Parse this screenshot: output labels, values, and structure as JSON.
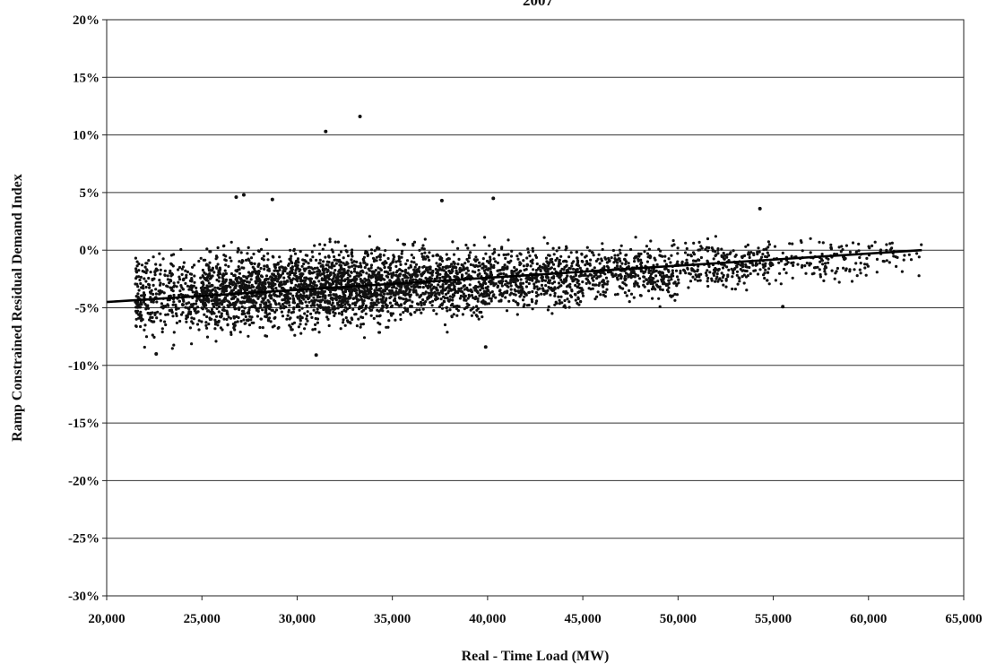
{
  "chart_data": {
    "type": "scatter",
    "title": "2007",
    "xlabel": "Real - Time Load (MW)",
    "ylabel": "Ramp Constrained Residual Demand Index",
    "xlim": [
      20000,
      65000
    ],
    "ylim": [
      -30,
      20
    ],
    "x_ticks": [
      "20,000",
      "25,000",
      "30,000",
      "35,000",
      "40,000",
      "45,000",
      "50,000",
      "55,000",
      "60,000",
      "65,000"
    ],
    "y_ticks": [
      "20%",
      "15%",
      "10%",
      "5%",
      "0%",
      "-5%",
      "-10%",
      "-15%",
      "-20%",
      "-25%",
      "-30%"
    ],
    "grid": "horizontal",
    "legend": "none",
    "marker_color": "#111111",
    "trend_line": {
      "x": [
        20000,
        62800
      ],
      "y": [
        -4.5,
        0.0
      ]
    },
    "scatter_density": [
      {
        "x_range": [
          21500,
          25000
        ],
        "y_center": -4.0,
        "y_spread": 2.8,
        "count": 360
      },
      {
        "x_range": [
          25000,
          30000
        ],
        "y_center": -3.5,
        "y_spread": 2.9,
        "count": 900
      },
      {
        "x_range": [
          30000,
          35000
        ],
        "y_center": -3.2,
        "y_spread": 2.9,
        "count": 950
      },
      {
        "x_range": [
          35000,
          40000
        ],
        "y_center": -2.8,
        "y_spread": 2.6,
        "count": 700
      },
      {
        "x_range": [
          40000,
          45000
        ],
        "y_center": -2.5,
        "y_spread": 2.3,
        "count": 520
      },
      {
        "x_range": [
          45000,
          50000
        ],
        "y_center": -1.9,
        "y_spread": 2.0,
        "count": 380
      },
      {
        "x_range": [
          50000,
          55000
        ],
        "y_center": -1.3,
        "y_spread": 1.8,
        "count": 260
      },
      {
        "x_range": [
          55000,
          60000
        ],
        "y_center": -0.9,
        "y_spread": 1.6,
        "count": 120
      },
      {
        "x_range": [
          60000,
          62800
        ],
        "y_center": -0.5,
        "y_spread": 1.2,
        "count": 35
      }
    ],
    "outliers": [
      {
        "x": 33300,
        "y": 11.6
      },
      {
        "x": 31500,
        "y": 10.3
      },
      {
        "x": 27200,
        "y": 4.8
      },
      {
        "x": 26800,
        "y": 4.6
      },
      {
        "x": 28700,
        "y": 4.4
      },
      {
        "x": 37600,
        "y": 4.3
      },
      {
        "x": 40300,
        "y": 4.5
      },
      {
        "x": 54300,
        "y": 3.6
      },
      {
        "x": 39900,
        "y": -8.4
      },
      {
        "x": 55500,
        "y": -4.9
      },
      {
        "x": 22600,
        "y": -9.0
      },
      {
        "x": 31000,
        "y": -9.1
      }
    ]
  }
}
